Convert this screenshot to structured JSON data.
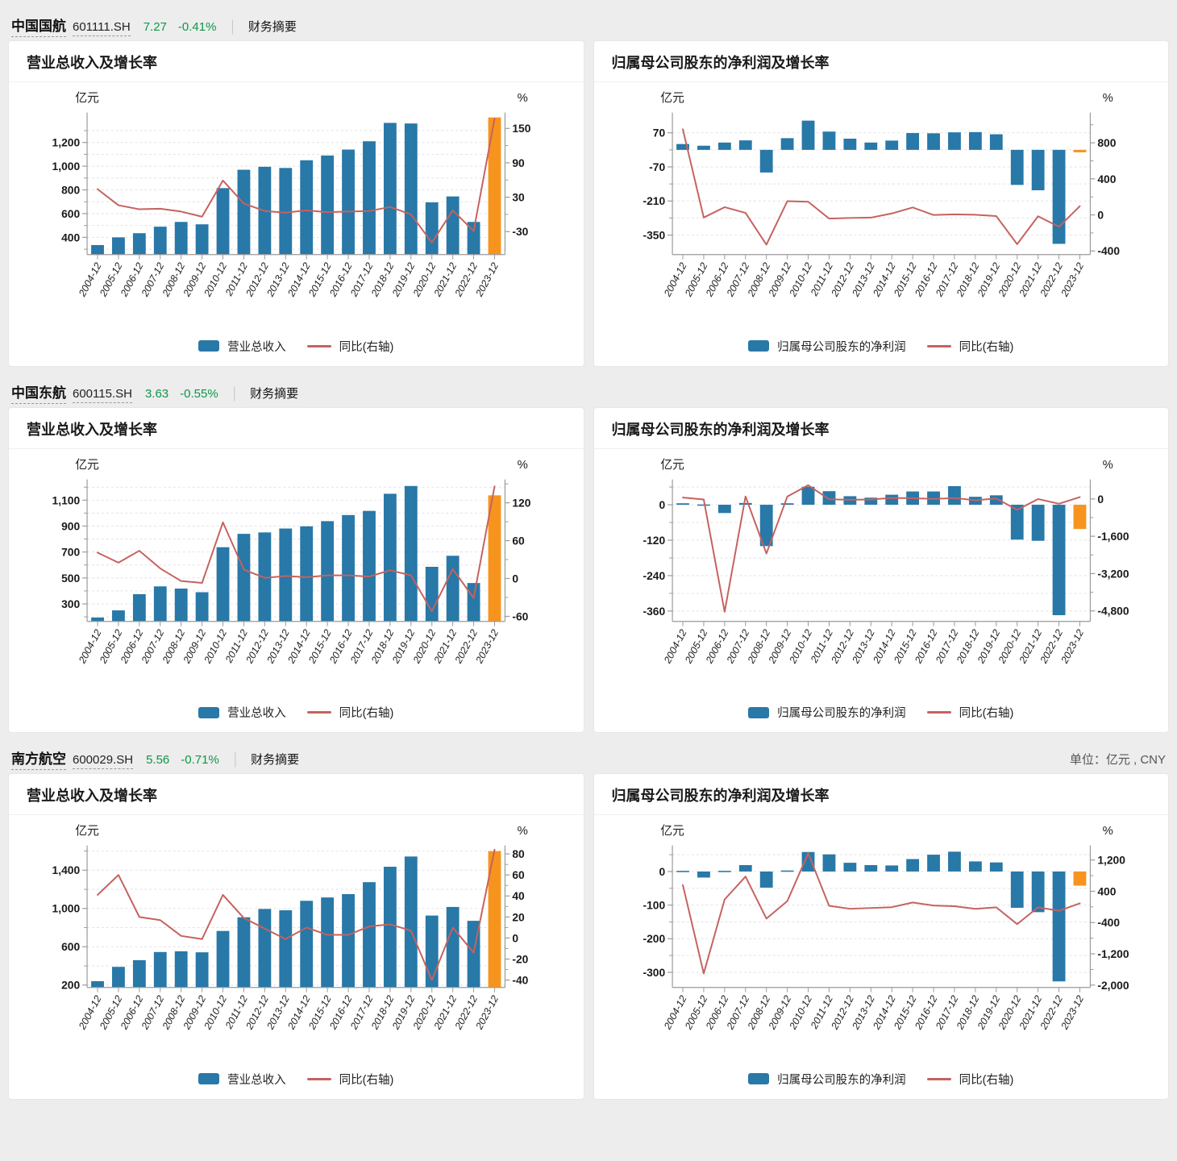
{
  "page": {
    "unit_note": "单位：亿元 , CNY"
  },
  "colors": {
    "bar": "#2878a8",
    "bar_highlight": "#f7941e",
    "line": "#c5625f",
    "quote_green": "#0e9648",
    "grid": "#e2e2e2",
    "axis": "#9a9a9a"
  },
  "categories": [
    "2004-12",
    "2005-12",
    "2006-12",
    "2007-12",
    "2008-12",
    "2009-12",
    "2010-12",
    "2011-12",
    "2012-12",
    "2013-12",
    "2014-12",
    "2015-12",
    "2016-12",
    "2017-12",
    "2018-12",
    "2019-12",
    "2020-12",
    "2021-12",
    "2022-12",
    "2023-12"
  ],
  "sections": [
    {
      "name": "中国国航",
      "code": "601111.SH",
      "price": "7.27",
      "change": "-0.41%",
      "link": "财务摘要",
      "charts": [
        0,
        1
      ]
    },
    {
      "name": "中国东航",
      "code": "600115.SH",
      "price": "3.63",
      "change": "-0.55%",
      "link": "财务摘要",
      "charts": [
        2,
        3
      ]
    },
    {
      "name": "南方航空",
      "code": "600029.SH",
      "price": "5.56",
      "change": "-0.71%",
      "link": "财务摘要",
      "charts": [
        4,
        5
      ]
    }
  ],
  "chart_data": [
    {
      "type": "bar",
      "title": "营业总收入及增长率",
      "unit_left": "亿元",
      "unit_right": "%",
      "legend": {
        "bar": "营业总收入",
        "line": "同比(右轴)"
      },
      "bar_series": "营业总收入(亿元)",
      "bars": [
        335,
        400,
        435,
        490,
        530,
        510,
        815,
        970,
        995,
        985,
        1050,
        1090,
        1140,
        1210,
        1365,
        1360,
        695,
        745,
        530,
        1411
      ],
      "line_series": "同比增长率(%)",
      "line": [
        44,
        16,
        9,
        10,
        5,
        -4,
        59,
        19,
        6,
        3,
        7,
        4,
        5,
        6,
        13,
        0,
        -49,
        7,
        -29,
        167
      ],
      "left_axis": {
        "min": 255,
        "max": 1425,
        "majors": [
          {
            "v": 400,
            "t": "400"
          },
          {
            "v": 600,
            "t": "600"
          },
          {
            "v": 800,
            "t": "800"
          },
          {
            "v": 1000,
            "t": "1,000"
          },
          {
            "v": 1200,
            "t": "1,200"
          }
        ],
        "minors": [
          300,
          500,
          700,
          900,
          1100,
          1300
        ]
      },
      "right_axis": {
        "min": -70,
        "max": 172,
        "majors": [
          {
            "v": -30,
            "t": "-30"
          },
          {
            "v": 30,
            "t": "30"
          },
          {
            "v": 90,
            "t": "90"
          },
          {
            "v": 150,
            "t": "150"
          }
        ],
        "minors": [
          0,
          60,
          120
        ]
      },
      "highlight_last": true
    },
    {
      "type": "bar",
      "title": "归属母公司股东的净利润及增长率",
      "unit_left": "亿元",
      "unit_right": "%",
      "legend": {
        "bar": "归属母公司股东的净利润",
        "line": "同比(右轴)"
      },
      "bar_series": "归属母公司股东的净利润(亿元)",
      "bars": [
        24,
        17,
        30,
        39,
        -93,
        48,
        120,
        75,
        46,
        30,
        38,
        69,
        68,
        72,
        73,
        64,
        -144,
        -166,
        -386,
        -10
      ],
      "line_series": "同比增长率(%)",
      "line": [
        950,
        -29,
        86,
        22,
        -330,
        152,
        146,
        -41,
        -34,
        -30,
        16,
        82,
        -1,
        6,
        2,
        -13,
        -325,
        -15,
        -132,
        97
      ],
      "left_axis": {
        "min": -430,
        "max": 140,
        "majors": [
          {
            "v": 70,
            "t": "70"
          },
          {
            "v": -70,
            "t": "-70"
          },
          {
            "v": -210,
            "t": "-210"
          },
          {
            "v": -350,
            "t": "-350"
          }
        ],
        "minors": [
          0,
          -140,
          -280
        ]
      },
      "right_axis": {
        "min": -440,
        "max": 1100,
        "majors": [
          {
            "v": 800,
            "t": "800"
          },
          {
            "v": 400,
            "t": "400"
          },
          {
            "v": 0,
            "t": "0"
          },
          {
            "v": -400,
            "t": "-400"
          }
        ],
        "minors": [
          1000,
          600,
          200,
          -200
        ]
      },
      "highlight_last": true
    },
    {
      "type": "bar",
      "title": "营业总收入及增长率",
      "unit_left": "亿元",
      "unit_right": "%",
      "legend": {
        "bar": "营业总收入",
        "line": "同比(右轴)"
      },
      "bar_series": "营业总收入(亿元)",
      "bars": [
        195,
        250,
        375,
        435,
        418,
        390,
        737,
        840,
        851,
        881,
        898,
        938,
        985,
        1017,
        1149,
        1209,
        586,
        671,
        461,
        1137
      ],
      "line_series": "同比增长率(%)",
      "line": [
        41,
        25,
        44,
        16,
        -4,
        -7,
        89,
        14,
        1,
        4,
        2,
        5,
        5,
        3,
        13,
        5,
        -52,
        15,
        -31,
        146
      ],
      "left_axis": {
        "min": 165,
        "max": 1235,
        "majors": [
          {
            "v": 300,
            "t": "300"
          },
          {
            "v": 500,
            "t": "500"
          },
          {
            "v": 700,
            "t": "700"
          },
          {
            "v": 900,
            "t": "900"
          },
          {
            "v": 1100,
            "t": "1,100"
          }
        ],
        "minors": [
          200,
          400,
          600,
          800,
          1000,
          1200
        ]
      },
      "right_axis": {
        "min": -68,
        "max": 152,
        "majors": [
          {
            "v": -60,
            "t": "-60"
          },
          {
            "v": 0,
            "t": "0"
          },
          {
            "v": 60,
            "t": "60"
          },
          {
            "v": 120,
            "t": "120"
          }
        ],
        "minors": [
          -30,
          30,
          90,
          150
        ]
      },
      "highlight_last": true
    },
    {
      "type": "bar",
      "title": "归属母公司股东的净利润及增长率",
      "unit_left": "亿元",
      "unit_right": "%",
      "legend": {
        "bar": "归属母公司股东的净利润",
        "line": "同比(右轴)"
      },
      "bar_series": "归属母公司股东的净利润(亿元)",
      "bars": [
        5,
        1,
        -28,
        6,
        -140,
        5,
        61,
        46,
        29,
        24,
        34,
        45,
        45,
        63,
        27,
        32,
        -118,
        -122,
        -374,
        -82
      ],
      "line_series": "同比增长率(%)",
      "line": [
        60,
        -20,
        -4840,
        110,
        -2340,
        100,
        590,
        -15,
        -36,
        -20,
        44,
        33,
        -1,
        41,
        -57,
        18,
        -470,
        -3,
        -206,
        78
      ],
      "left_axis": {
        "min": -395,
        "max": 75,
        "majors": [
          {
            "v": 0,
            "t": "0"
          },
          {
            "v": -120,
            "t": "-120"
          },
          {
            "v": -240,
            "t": "-240"
          },
          {
            "v": -360,
            "t": "-360"
          }
        ],
        "minors": [
          60,
          -60,
          -180,
          -300
        ]
      },
      "right_axis": {
        "min": -5250,
        "max": 700,
        "majors": [
          {
            "v": 0,
            "t": "0"
          },
          {
            "v": -1600,
            "t": "-1,600"
          },
          {
            "v": -3200,
            "t": "-3,200"
          },
          {
            "v": -4800,
            "t": "-4,800"
          }
        ],
        "minors": [
          -800,
          -2400,
          -4000
        ]
      },
      "highlight_last": true
    },
    {
      "type": "bar",
      "title": "营业总收入及增长率",
      "unit_left": "亿元",
      "unit_right": "%",
      "legend": {
        "bar": "营业总收入",
        "line": "同比(右轴)"
      },
      "bar_series": "营业总收入(亿元)",
      "bars": [
        240,
        390,
        460,
        545,
        553,
        542,
        765,
        908,
        995,
        981,
        1080,
        1115,
        1150,
        1275,
        1436,
        1543,
        926,
        1016,
        871,
        1599
      ],
      "line_series": "同比增长率(%)",
      "line": [
        41,
        60,
        20,
        17,
        2,
        -1,
        41,
        19,
        9,
        -1,
        10,
        3,
        3,
        11,
        13,
        7,
        -40,
        10,
        -14,
        84
      ],
      "left_axis": {
        "min": 175,
        "max": 1625,
        "majors": [
          {
            "v": 200,
            "t": "200"
          },
          {
            "v": 600,
            "t": "600"
          },
          {
            "v": 1000,
            "t": "1,000"
          },
          {
            "v": 1400,
            "t": "1,400"
          }
        ],
        "minors": [
          400,
          800,
          1200,
          1600
        ]
      },
      "right_axis": {
        "min": -47,
        "max": 85,
        "majors": [
          {
            "v": 80,
            "t": "80"
          },
          {
            "v": 60,
            "t": "60"
          },
          {
            "v": 40,
            "t": "40"
          },
          {
            "v": 20,
            "t": "20"
          },
          {
            "v": 0,
            "t": "0"
          },
          {
            "v": -20,
            "t": "-20"
          },
          {
            "v": -40,
            "t": "-40"
          }
        ],
        "minors": [
          70,
          50,
          30,
          10,
          -10,
          -30
        ]
      },
      "highlight_last": true
    },
    {
      "type": "bar",
      "title": "归属母公司股东的净利润及增长率",
      "unit_left": "亿元",
      "unit_right": "%",
      "legend": {
        "bar": "归属母公司股东的净利润",
        "line": "同比(右轴)"
      },
      "bar_series": "归属母公司股东的净利润(亿元)",
      "bars": [
        2,
        -18,
        2,
        19,
        -48,
        3,
        58,
        51,
        26,
        19,
        18,
        37,
        50,
        59,
        30,
        27,
        -108,
        -121,
        -327,
        -42
      ],
      "line_series": "同比增长率(%)",
      "line": [
        560,
        -1700,
        190,
        775,
        -300,
        150,
        1370,
        27,
        -49,
        -28,
        -7,
        112,
        35,
        17,
        -50,
        -11,
        -440,
        -12,
        -100,
        90
      ],
      "left_axis": {
        "min": -345,
        "max": 68,
        "majors": [
          {
            "v": 0,
            "t": "0"
          },
          {
            "v": -100,
            "t": "-100"
          },
          {
            "v": -200,
            "t": "-200"
          },
          {
            "v": -300,
            "t": "-300"
          }
        ],
        "minors": [
          50,
          -50,
          -150,
          -250
        ]
      },
      "right_axis": {
        "min": -2060,
        "max": 1490,
        "majors": [
          {
            "v": 1200,
            "t": "1,200"
          },
          {
            "v": 400,
            "t": "400"
          },
          {
            "v": -400,
            "t": "-400"
          },
          {
            "v": -1200,
            "t": "-1,200"
          },
          {
            "v": -2000,
            "t": "-2,000"
          }
        ],
        "minors": [
          800,
          0,
          -800,
          -1600
        ]
      },
      "highlight_last": true
    }
  ]
}
